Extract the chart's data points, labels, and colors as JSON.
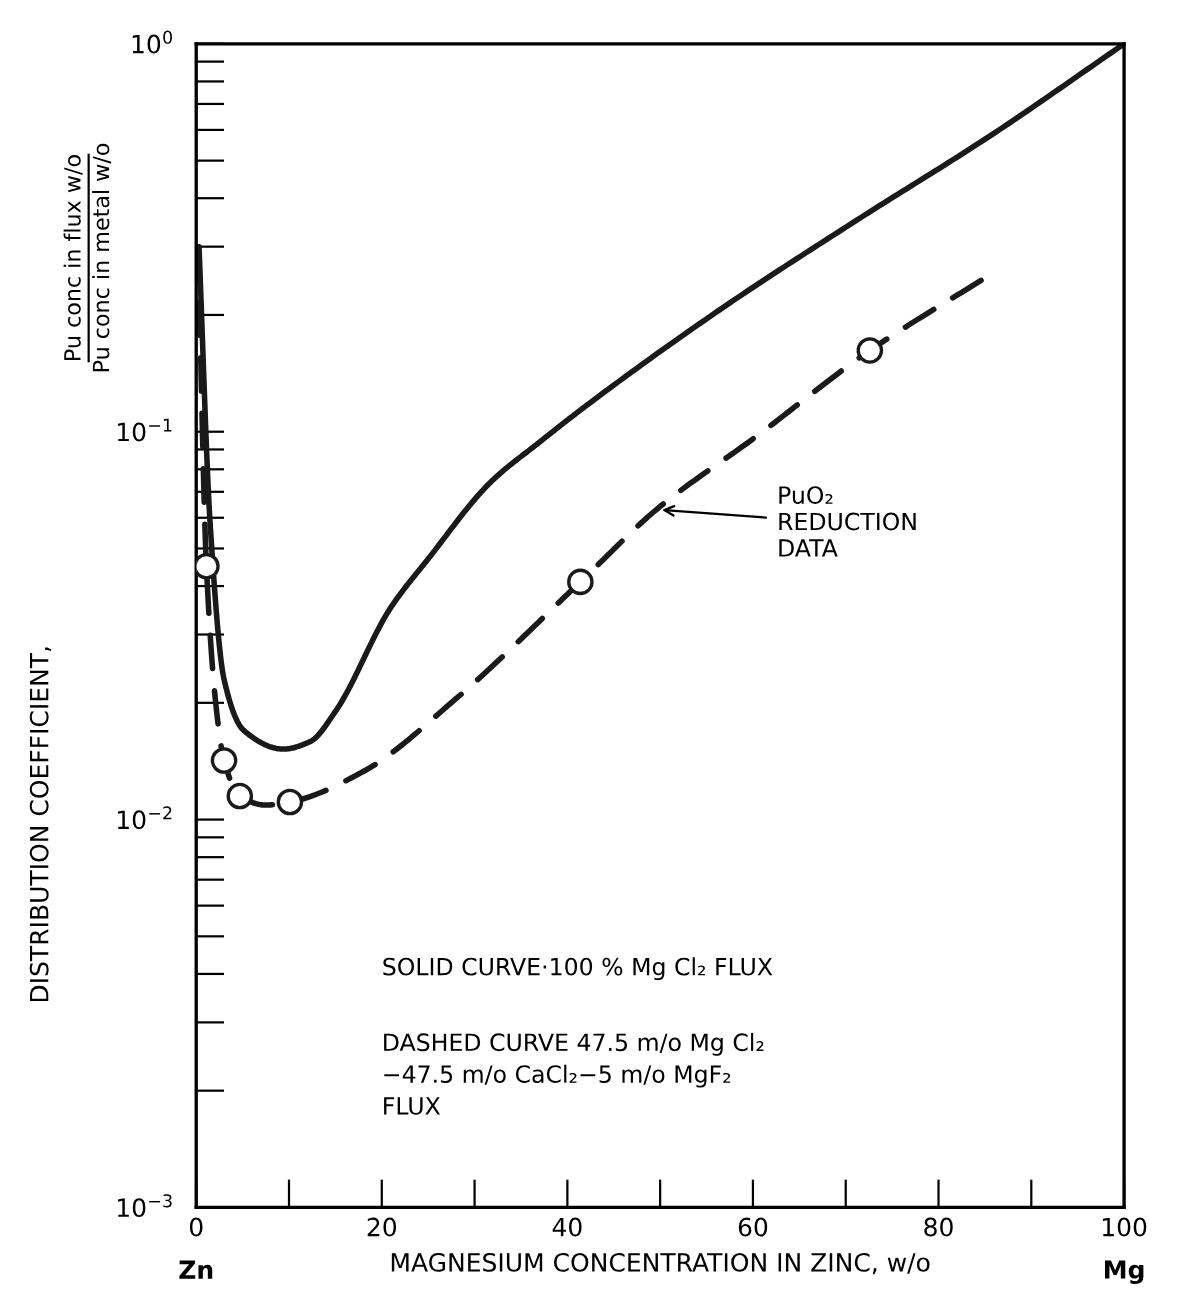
{
  "chart_data": {
    "type": "line",
    "xlabel": "MAGNESIUM CONCENTRATION IN ZINC, w/o",
    "ylabel": "DISTRIBUTION COEFFICIENT,",
    "log": "y",
    "grid": false,
    "legend": false,
    "xlim": [
      0,
      100
    ],
    "ylim": [
      0.001,
      1
    ],
    "xticks": [
      0,
      {
        "value": 10,
        "label": null
      },
      20,
      {
        "value": 30,
        "label": null
      },
      40,
      {
        "value": 50,
        "label": null
      },
      60,
      {
        "value": 70,
        "label": null
      },
      80,
      {
        "value": 90,
        "label": null
      },
      100
    ],
    "yticks": [
      {
        "value": 0.001,
        "label": "10$^{−3}$"
      },
      {
        "value": 0.002,
        "label": null
      },
      {
        "value": 0.003,
        "label": null
      },
      {
        "value": 0.004,
        "label": null
      },
      {
        "value": 0.005,
        "label": null
      },
      {
        "value": 0.006,
        "label": null
      },
      {
        "value": 0.007,
        "label": null
      },
      {
        "value": 0.008,
        "label": null
      },
      {
        "value": 0.009,
        "label": null
      },
      {
        "value": 0.01,
        "label": "10$^{−2}$"
      },
      {
        "value": 0.02,
        "label": null
      },
      {
        "value": 0.03,
        "label": null
      },
      {
        "value": 0.04,
        "label": null
      },
      {
        "value": 0.05,
        "label": null
      },
      {
        "value": 0.06,
        "label": null
      },
      {
        "value": 0.07,
        "label": null
      },
      {
        "value": 0.08,
        "label": null
      },
      {
        "value": 0.09,
        "label": null
      },
      {
        "value": 0.1,
        "label": "10$^{−1}$"
      },
      {
        "value": 0.2,
        "label": null
      },
      {
        "value": 0.3,
        "label": null
      },
      {
        "value": 0.4,
        "label": null
      },
      {
        "value": 0.5,
        "label": null
      },
      {
        "value": 0.6,
        "label": null
      },
      {
        "value": 0.7,
        "label": null
      },
      {
        "value": 0.8,
        "label": null
      },
      {
        "value": 0.9,
        "label": null
      },
      {
        "value": 1,
        "label": "10$^{0}$"
      }
    ],
    "series": [
      {
        "color": "#1a1a1a",
        "line_style": "solid",
        "marker": "none",
        "x": [
          0.3,
          1.5,
          3.0,
          5.1,
          9.4,
          12.3,
          15,
          20.9,
          25,
          31.7,
          37,
          42.5,
          56.9,
          71.1,
          85.6,
          100
        ],
        "values": [
          0.3,
          0.058,
          0.023,
          0.017,
          0.0152,
          0.0159,
          0.019,
          0.035,
          0.047,
          0.074,
          0.094,
          0.119,
          0.21,
          0.35,
          0.58,
          1.0
        ]
      },
      {
        "color": "#1a1a1a",
        "line_style": "dashed",
        "marker": "none",
        "x": [
          0.2,
          1.1,
          2.2,
          3.0,
          4.7,
          7.5,
          10.1,
          18,
          28,
          41.4,
          49.6,
          60.3,
          72.6,
          85.1
        ],
        "values": [
          0.3,
          0.045,
          0.019,
          0.0142,
          0.0115,
          0.0109,
          0.0111,
          0.0133,
          0.0205,
          0.041,
          0.063,
          0.097,
          0.162,
          0.25
        ]
      },
      {
        "type": "scatter",
        "color": "#1a1a1a",
        "marker": "circle",
        "x": [
          1.1,
          3.0,
          4.7,
          10.1,
          41.4,
          72.6
        ],
        "values": [
          0.045,
          0.0142,
          0.0115,
          0.0111,
          0.041,
          0.162
        ]
      }
    ],
    "annotations": [
      {
        "text": "PuO₂\nREDUCTION\nDATA",
        "x": 49.6,
        "y": 0.063
      },
      "SOLID CURVE·100 % Mg Cl₂ FLUX",
      "DASHED CURVE 47.5 m/o Mg Cl₂\n−47.5 m/o CaCl₂−5 m/o MgF₂\nFLUX",
      "Pu conc in flux w/o\nPu conc in metal w/o",
      "Zn",
      "Mg"
    ]
  }
}
